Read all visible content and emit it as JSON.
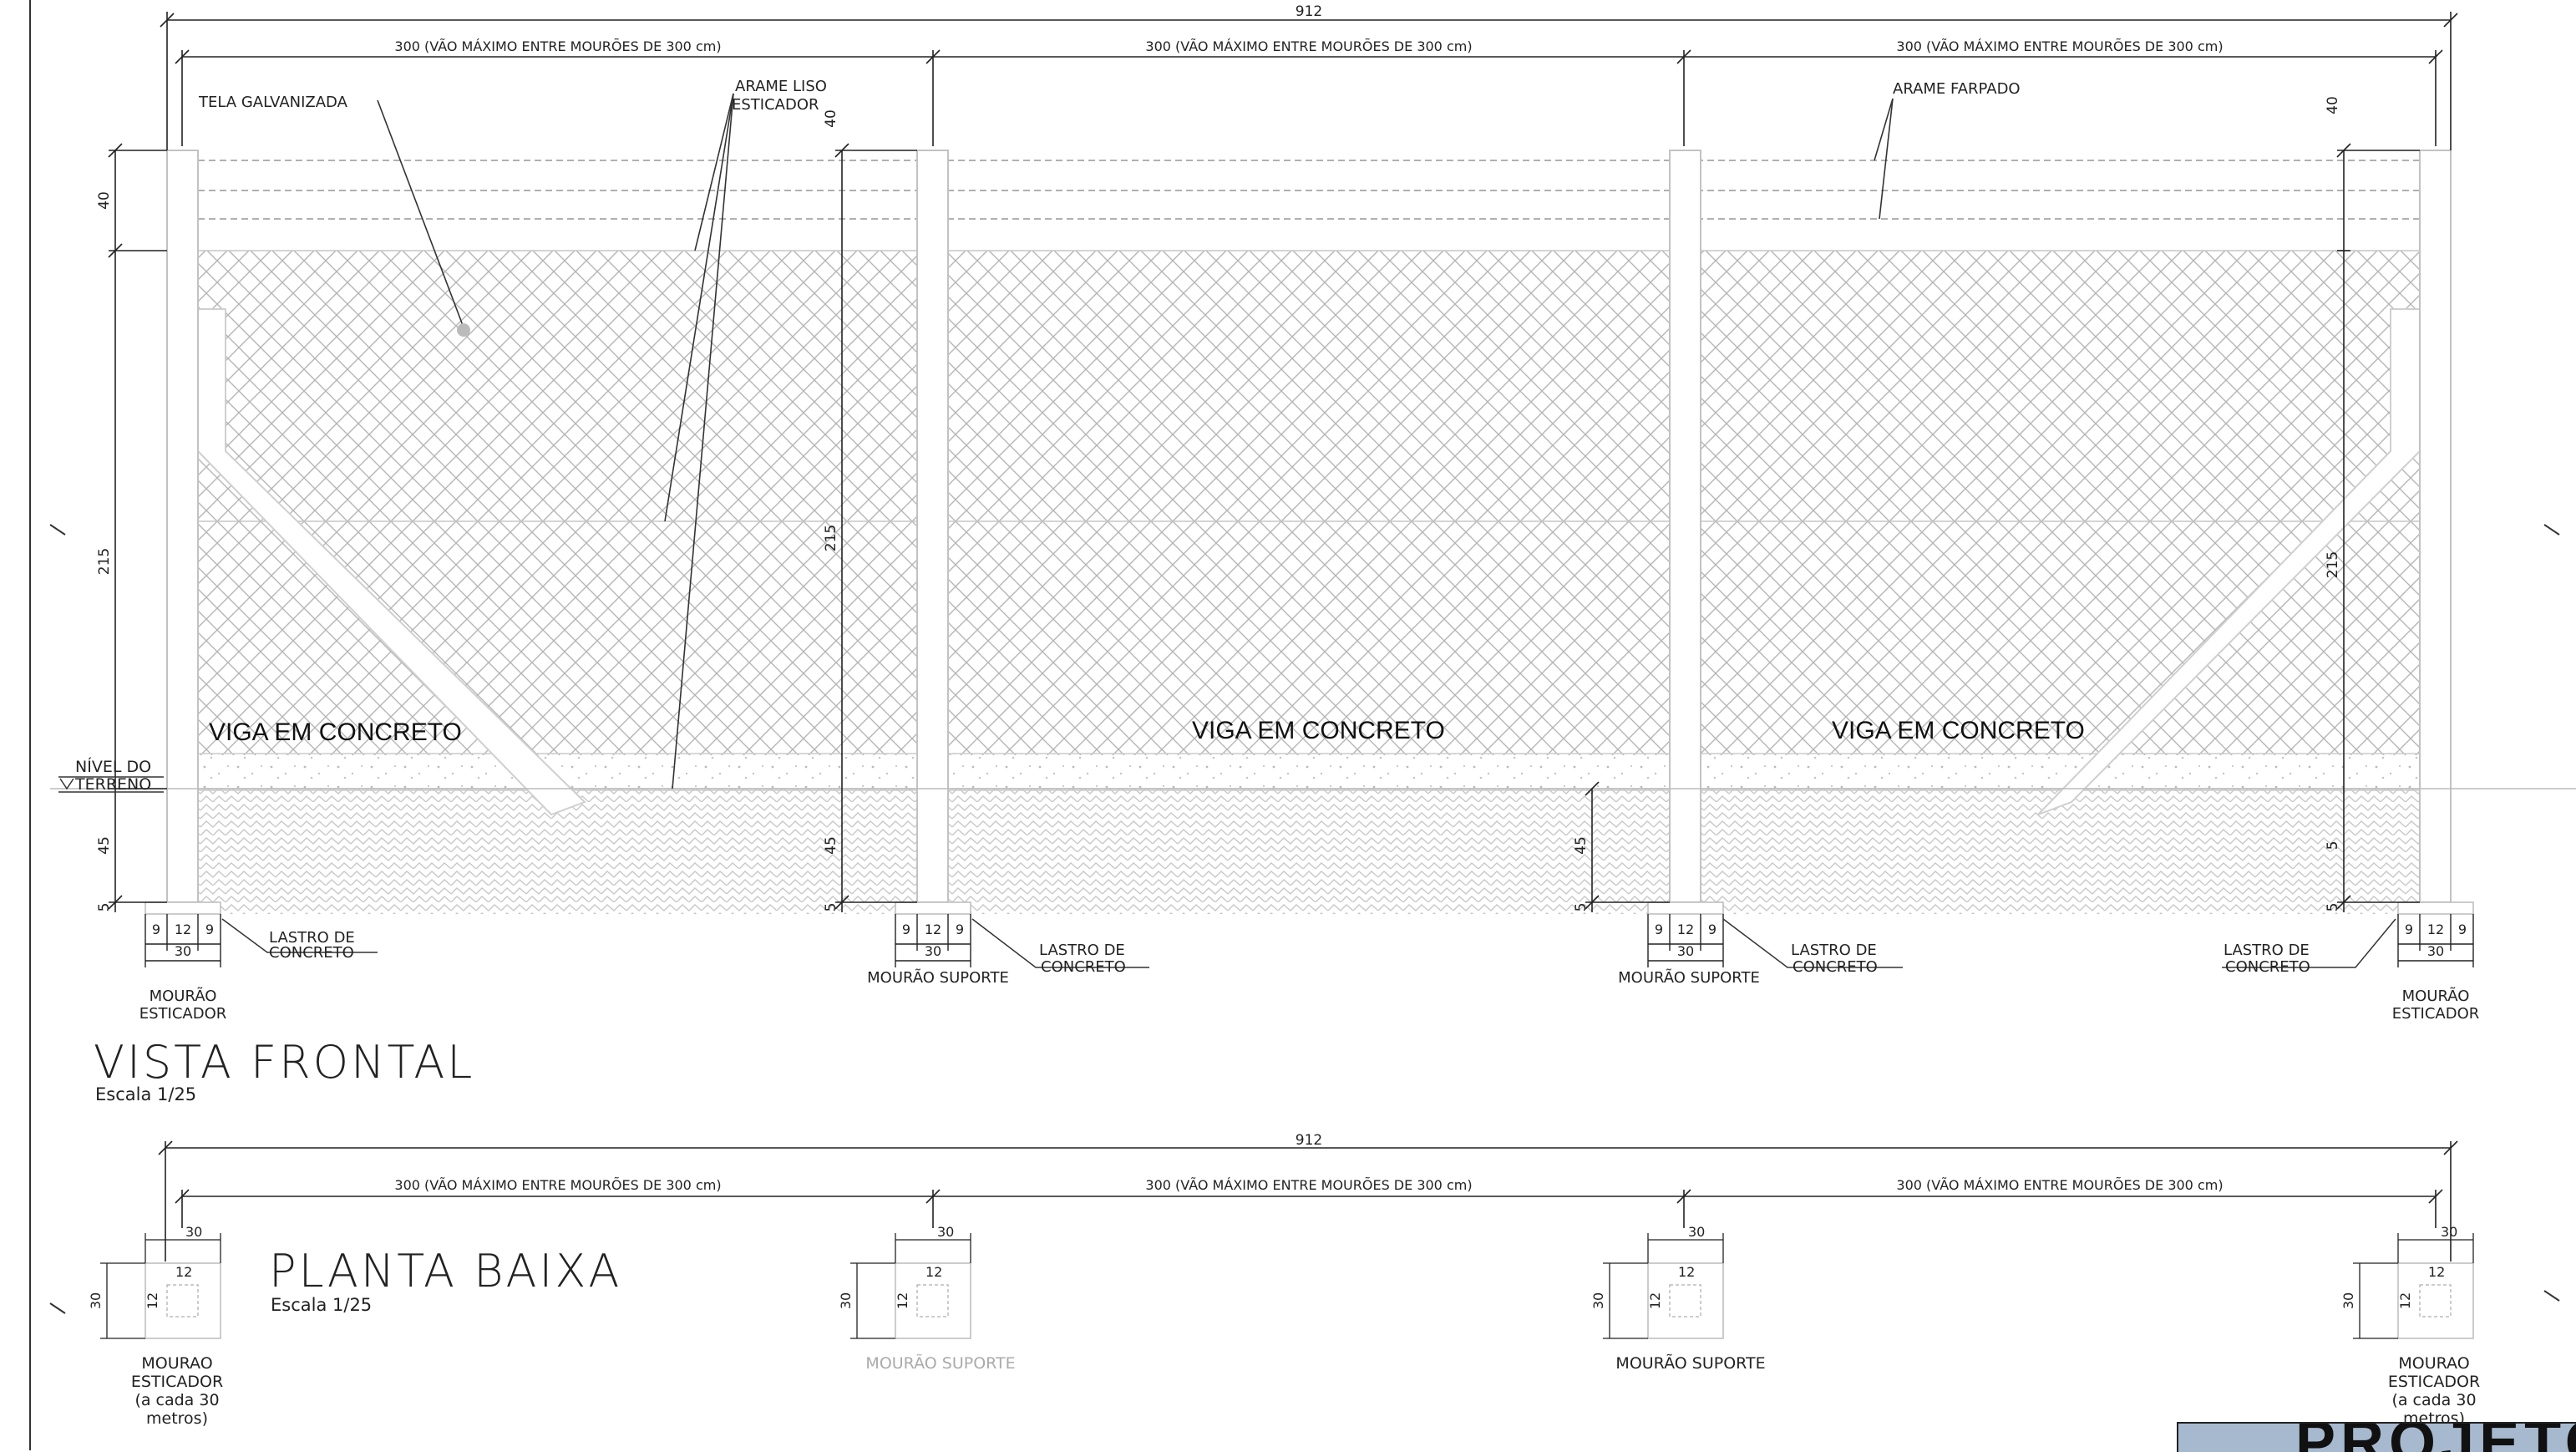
{
  "front": {
    "overall_dim": "912",
    "span_label": "300 (VÃO MÁXIMO ENTRE MOURÕES DE 300 cm)",
    "tela": "TELA GALVANIZADA",
    "arame_liso_1": "ARAME LISO",
    "arame_liso_2": "ESTICADOR",
    "arame_farpado": "ARAME FARPADO",
    "viga": "VIGA EM CONCRETO",
    "nivel_1": "NÍVEL DO",
    "nivel_2": "TERRENO",
    "dims": {
      "d40": "40",
      "d215": "215",
      "d45": "45",
      "d5": "5",
      "d9": "9",
      "d12": "12",
      "d30": "30"
    },
    "lastro_1": "LASTRO DE",
    "lastro_2": "CONCRETO",
    "mourao_1": "MOURÃO",
    "esticador": "ESTICADOR",
    "mourao_suporte": "MOURÃO SUPORTE",
    "title": "VISTA FRONTAL",
    "scale": "Escala 1/25"
  },
  "plan": {
    "overall_dim": "912",
    "span_label": "300 (VÃO MÁXIMO ENTRE MOURÕES DE 300 cm)",
    "title": "PLANTA BAIXA",
    "scale": "Escala 1/25",
    "dims": {
      "d30": "30",
      "d12": "12"
    },
    "mourao_1": "MOURAO",
    "esticador": "ESTICADOR",
    "cada_1": "(a cada 30",
    "cada_2": "metros)",
    "mourao_suporte": "MOURÃO SUPORTE"
  },
  "title_block": {
    "text": "PROJETO"
  }
}
